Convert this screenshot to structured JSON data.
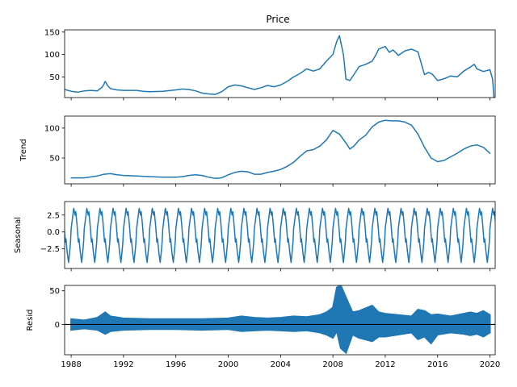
{
  "chart_data": [
    {
      "type": "line",
      "title": "Price",
      "ylabel": "",
      "xlabel": "",
      "xlim": [
        1987.5,
        2020.4
      ],
      "ylim": [
        4,
        155
      ],
      "yticks": [
        50,
        100,
        150
      ],
      "xticks": [
        1988,
        1992,
        1996,
        2000,
        2004,
        2008,
        2012,
        2016,
        2020
      ],
      "show_xtick_labels": false,
      "grid": false,
      "color": "#1f77b4",
      "series": [
        {
          "x": [
            1987.5,
            1988,
            1988.5,
            1989,
            1989.5,
            1990,
            1990.4,
            1990.6,
            1990.8,
            1991,
            1991.5,
            1992,
            1993,
            1993.5,
            1994,
            1995,
            1996,
            1996.5,
            1997,
            1997.5,
            1998,
            1998.5,
            1999,
            1999.5,
            2000,
            2000.5,
            2001,
            2001.5,
            2002,
            2002.5,
            2003,
            2003.5,
            2004,
            2004.5,
            2005,
            2005.5,
            2006,
            2006.5,
            2007,
            2007.5,
            2008,
            2008.3,
            2008.5,
            2008.8,
            2009,
            2009.3,
            2009.6,
            2010,
            2010.5,
            2011,
            2011.3,
            2011.5,
            2012,
            2012.3,
            2012.6,
            2013,
            2013.5,
            2014,
            2014.5,
            2015,
            2015.3,
            2015.6,
            2016,
            2016.5,
            2017,
            2017.5,
            2018,
            2018.5,
            2018.8,
            2019,
            2019.5,
            2020,
            2020.2,
            2020.3
          ],
          "y": [
            22,
            18,
            16,
            19,
            20,
            19,
            28,
            40,
            30,
            24,
            21,
            20,
            20,
            18,
            17,
            18,
            21,
            23,
            22,
            19,
            14,
            12,
            11,
            17,
            28,
            32,
            30,
            26,
            22,
            26,
            31,
            28,
            32,
            40,
            50,
            58,
            68,
            63,
            68,
            85,
            100,
            130,
            142,
            100,
            45,
            42,
            55,
            73,
            78,
            85,
            100,
            112,
            118,
            105,
            110,
            98,
            108,
            112,
            106,
            55,
            60,
            56,
            42,
            46,
            52,
            50,
            63,
            72,
            78,
            68,
            62,
            66,
            45,
            5
          ]
        }
      ]
    },
    {
      "type": "line",
      "title": "",
      "ylabel": "Trend",
      "xlim": [
        1987.5,
        2020.4
      ],
      "ylim": [
        7,
        120
      ],
      "yticks": [
        50,
        100
      ],
      "xticks": [
        1988,
        1992,
        1996,
        2000,
        2004,
        2008,
        2012,
        2016,
        2020
      ],
      "show_xtick_labels": false,
      "grid": false,
      "color": "#1f77b4",
      "series": [
        {
          "x": [
            1988,
            1989,
            1990,
            1990.5,
            1991,
            1991.5,
            1992,
            1993,
            1994,
            1995,
            1996,
            1996.5,
            1997,
            1997.5,
            1998,
            1998.5,
            1999,
            1999.5,
            2000,
            2000.5,
            2001,
            2001.5,
            2002,
            2002.5,
            2003,
            2003.5,
            2004,
            2004.5,
            2005,
            2005.5,
            2006,
            2006.5,
            2007,
            2007.5,
            2008,
            2008.5,
            2009,
            2009.3,
            2009.6,
            2010,
            2010.5,
            2011,
            2011.5,
            2012,
            2012.5,
            2013,
            2013.5,
            2014,
            2014.5,
            2015,
            2015.5,
            2016,
            2016.5,
            2017,
            2017.5,
            2018,
            2018.5,
            2019,
            2019.5,
            2020
          ],
          "y": [
            17,
            17,
            20,
            23,
            24,
            22,
            21,
            20,
            19,
            18,
            18,
            19,
            21,
            22,
            21,
            18,
            16,
            17,
            22,
            26,
            28,
            27,
            23,
            23,
            26,
            28,
            31,
            36,
            43,
            53,
            62,
            64,
            70,
            80,
            96,
            90,
            75,
            65,
            70,
            80,
            88,
            102,
            110,
            113,
            112,
            112,
            110,
            105,
            90,
            68,
            50,
            44,
            46,
            52,
            58,
            65,
            70,
            72,
            68,
            58
          ]
        }
      ]
    },
    {
      "type": "line",
      "title": "",
      "ylabel": "Seasonal",
      "xlim": [
        1987.5,
        2020.4
      ],
      "ylim": [
        -5.4,
        4.5
      ],
      "yticks": [
        -2.5,
        0.0,
        2.5
      ],
      "ytick_labels": [
        "−2.5",
        "0.0",
        "2.5"
      ],
      "xticks": [
        1988,
        1992,
        1996,
        2000,
        2004,
        2008,
        2012,
        2016,
        2020
      ],
      "show_xtick_labels": false,
      "grid": false,
      "color": "#1f77b4",
      "period_years": 1,
      "pattern": {
        "phase": [
          0,
          0.1,
          0.2,
          0.3,
          0.35,
          0.45,
          0.55,
          0.6,
          0.7,
          0.8,
          0.88,
          0.95,
          1.0
        ],
        "value": [
          0.5,
          2.0,
          3.5,
          2.5,
          3.0,
          1.0,
          -1.5,
          -1.0,
          -3.0,
          -4.5,
          -3.0,
          -1.5,
          0.5
        ]
      }
    },
    {
      "type": "scatter",
      "title": "",
      "ylabel": "Resid",
      "xlim": [
        1987.5,
        2020.4
      ],
      "ylim": [
        -45,
        58
      ],
      "yticks": [
        0,
        50
      ],
      "xticks": [
        1988,
        1992,
        1996,
        2000,
        2004,
        2008,
        2012,
        2016,
        2020
      ],
      "xtick_labels": [
        "1988",
        "1992",
        "1996",
        "2000",
        "2004",
        "2008",
        "2012",
        "2016",
        "2020"
      ],
      "show_xtick_labels": true,
      "grid": false,
      "color": "#1f77b4",
      "zero_line": true,
      "envelope": {
        "x": [
          1988,
          1989,
          1990,
          1990.6,
          1991,
          1992,
          1994,
          1996,
          1998,
          2000,
          2001,
          2002,
          2003,
          2004,
          2005,
          2006,
          2007,
          2007.5,
          2008,
          2008.3,
          2008.6,
          2009,
          2009.5,
          2010,
          2011,
          2011.5,
          2012,
          2013,
          2014,
          2014.5,
          2015,
          2015.5,
          2016,
          2017,
          2018,
          2018.5,
          2019,
          2019.5,
          2020
        ],
        "lower": [
          -8,
          -6,
          -8,
          -14,
          -10,
          -8,
          -7,
          -7,
          -8,
          -7,
          -10,
          -9,
          -8,
          -9,
          -10,
          -9,
          -12,
          -15,
          -20,
          -10,
          -35,
          -42,
          -15,
          -20,
          -25,
          -18,
          -18,
          -15,
          -12,
          -22,
          -18,
          -28,
          -15,
          -12,
          -14,
          -16,
          -14,
          -18,
          -12
        ],
        "upper": [
          8,
          6,
          10,
          18,
          12,
          9,
          8,
          8,
          8,
          9,
          12,
          10,
          9,
          10,
          12,
          11,
          14,
          18,
          25,
          55,
          58,
          40,
          18,
          20,
          28,
          18,
          16,
          14,
          12,
          22,
          20,
          14,
          15,
          12,
          16,
          18,
          16,
          20,
          14
        ]
      }
    }
  ]
}
